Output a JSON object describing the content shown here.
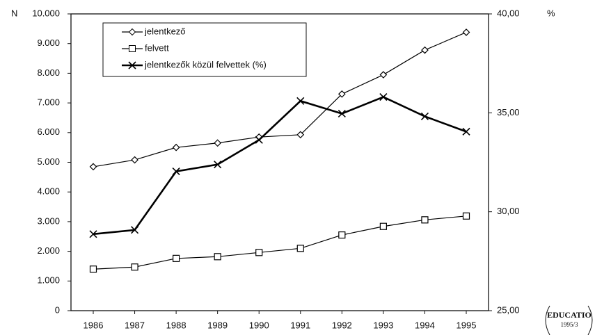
{
  "chart_data": {
    "type": "line",
    "y_label": "N",
    "y2_label": "%",
    "categories": [
      "1986",
      "1987",
      "1988",
      "1989",
      "1990",
      "1991",
      "1992",
      "1993",
      "1994",
      "1995"
    ],
    "series": [
      {
        "name": "jelentkező",
        "color": "#000000",
        "marker": "diamond",
        "line_width": 1.2,
        "values": [
          4850,
          5080,
          5500,
          5650,
          5850,
          5930,
          7300,
          7950,
          8780,
          9380
        ]
      },
      {
        "name": "felvett",
        "color": "#000000",
        "marker": "square",
        "line_width": 1.2,
        "values": [
          1400,
          1470,
          1760,
          1820,
          1960,
          2100,
          2550,
          2840,
          3060,
          3190
        ]
      },
      {
        "name": "jelentkezők közül felvettek (%)",
        "color": "#000000",
        "marker": "x",
        "line_width": 2.6,
        "axis": "y2",
        "values": [
          28.87,
          29.08,
          32.04,
          32.39,
          33.63,
          35.6,
          34.96,
          35.8,
          34.82,
          34.05
        ]
      }
    ],
    "ylim": [
      0,
      10000
    ],
    "yticks": [
      0,
      {
        "value": 1000,
        "label": "1.000"
      },
      {
        "value": 2000,
        "label": "2.000"
      },
      {
        "value": 3000,
        "label": "3.000"
      },
      {
        "value": 4000,
        "label": "4.000"
      },
      {
        "value": 5000,
        "label": "5.000"
      },
      {
        "value": 6000,
        "label": "6.000"
      },
      {
        "value": 7000,
        "label": "7.000"
      },
      {
        "value": 8000,
        "label": "8.000"
      },
      {
        "value": 9000,
        "label": "9.000"
      },
      {
        "value": 10000,
        "label": "10.000"
      }
    ],
    "y2lim": [
      25,
      40
    ],
    "y2ticks": [
      {
        "value": 25,
        "label": "25,00"
      },
      {
        "value": 30,
        "label": "30,00"
      },
      {
        "value": 35,
        "label": "35,00"
      },
      {
        "value": 40,
        "label": "40,00"
      }
    ],
    "grid": false,
    "annotations": [
      "EDUCATIO",
      "1995/3"
    ]
  }
}
